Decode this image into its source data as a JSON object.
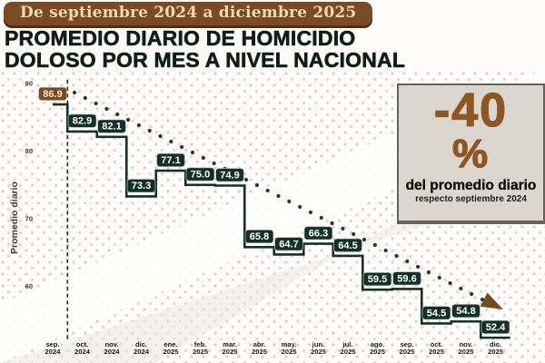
{
  "header": {
    "badge": "De septiembre 2024 a diciembre 2025"
  },
  "title": {
    "line1": "PROMEDIO DIARIO DE HOMICIDIO",
    "line2": "DOLOSO POR MES A NIVEL NACIONAL"
  },
  "callout": {
    "value": "-40",
    "percent": "%",
    "line1": "del promedio diario",
    "line2": "respecto septiembre 2024"
  },
  "chart_data": {
    "type": "line",
    "subtype": "step",
    "title": "PROMEDIO DIARIO DE HOMICIDIO DOLOSO POR MES A NIVEL NACIONAL",
    "ylabel": "Promedio diario",
    "yticks": [
      90,
      80,
      70,
      60
    ],
    "ylim": [
      50,
      92
    ],
    "grid": "off",
    "categories": [
      "sep. 2024",
      "oct. 2024",
      "nov. 2024",
      "dic. 2024",
      "ene. 2025",
      "feb. 2025",
      "mar. 2025",
      "abr. 2025",
      "may. 2025",
      "jun. 2025",
      "jul. 2025",
      "ago. 2025",
      "sep. 2025",
      "oct. 2025",
      "nov. 2025",
      "dic. 2025"
    ],
    "values": [
      86.9,
      82.9,
      82.1,
      73.3,
      77.1,
      75.0,
      74.9,
      65.8,
      64.7,
      66.3,
      64.5,
      59.5,
      59.6,
      54.5,
      54.8,
      52.4
    ],
    "highlight_index": 0,
    "trend": {
      "style": "dotted-arrow",
      "direction": "down"
    },
    "baseline_marker": {
      "style": "dashed-vertical",
      "at": "sep. 2024"
    }
  },
  "colors": {
    "accent_brown": "#7a4a24",
    "badge_dark": "#13302a",
    "badge_text": "#ffffff",
    "highlight_badge_text": "#f7ead0",
    "trend_dot": "#403312",
    "arrow": "#6f4e1d",
    "axis_text": "#1d1d1d",
    "callout_accent": "#8d5724"
  }
}
